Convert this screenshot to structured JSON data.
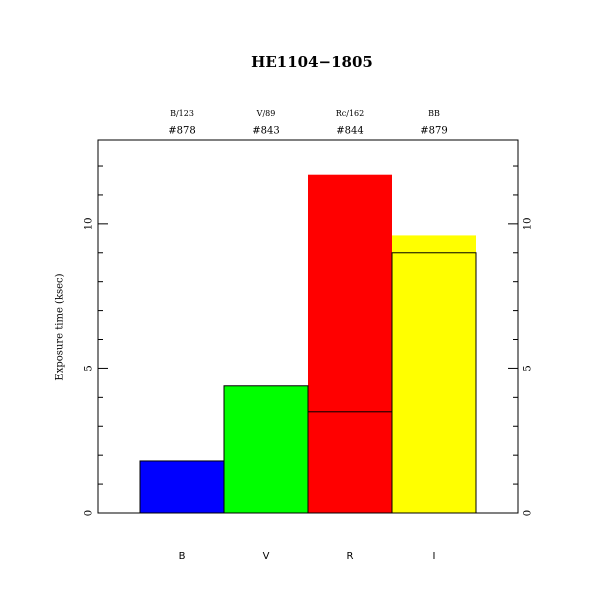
{
  "chart_data": {
    "type": "bar",
    "title": "HE1104−1805",
    "y_label": "Exposure time (ksec)",
    "categories": [
      "B",
      "V",
      "R",
      "I"
    ],
    "filters": [
      "B/123",
      "V/89",
      "Rc/162",
      "BB"
    ],
    "ids": [
      "#878",
      "#843",
      "#844",
      "#879"
    ],
    "series": [
      {
        "colors": [
          "#0000ff",
          "#00ff00",
          "#ff0000",
          "#ffff00"
        ],
        "values": [
          1.8,
          4.4,
          11.7,
          9.6
        ]
      },
      {
        "color": "#000000",
        "values": [
          1.8,
          4.4,
          3.5,
          9.0
        ]
      }
    ],
    "ylim": [
      0,
      12.9
    ],
    "yticks": [
      0,
      5,
      10
    ],
    "minor_yticks": [
      1,
      2,
      3,
      4,
      6,
      7,
      8,
      9,
      11,
      12
    ]
  }
}
